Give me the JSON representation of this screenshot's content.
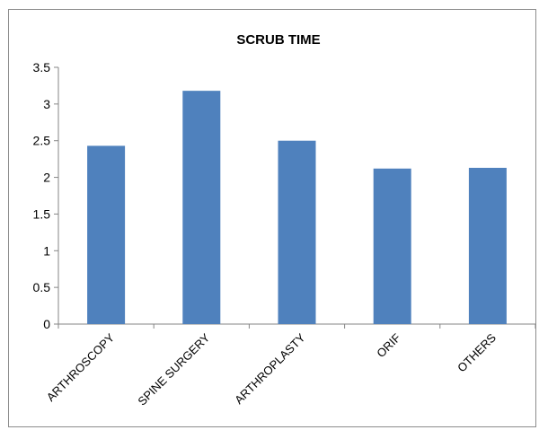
{
  "chart_data": {
    "type": "bar",
    "title": "SCRUB TIME",
    "categories": [
      "ARTHROSCOPY",
      "SPINE SURGERY",
      "ARTHROPLASTY",
      "ORIF",
      "OTHERS"
    ],
    "values": [
      2.43,
      3.18,
      2.5,
      2.12,
      2.13
    ],
    "ylim": [
      0,
      3.5
    ],
    "yticks": [
      "0",
      "0.5",
      "1",
      "1.5",
      "2",
      "2.5",
      "3",
      "3.5"
    ],
    "xlabel": "",
    "ylabel": "",
    "grid": false,
    "legend": "none",
    "bar_color": "#4f81bd",
    "axis_color": "#868686"
  }
}
